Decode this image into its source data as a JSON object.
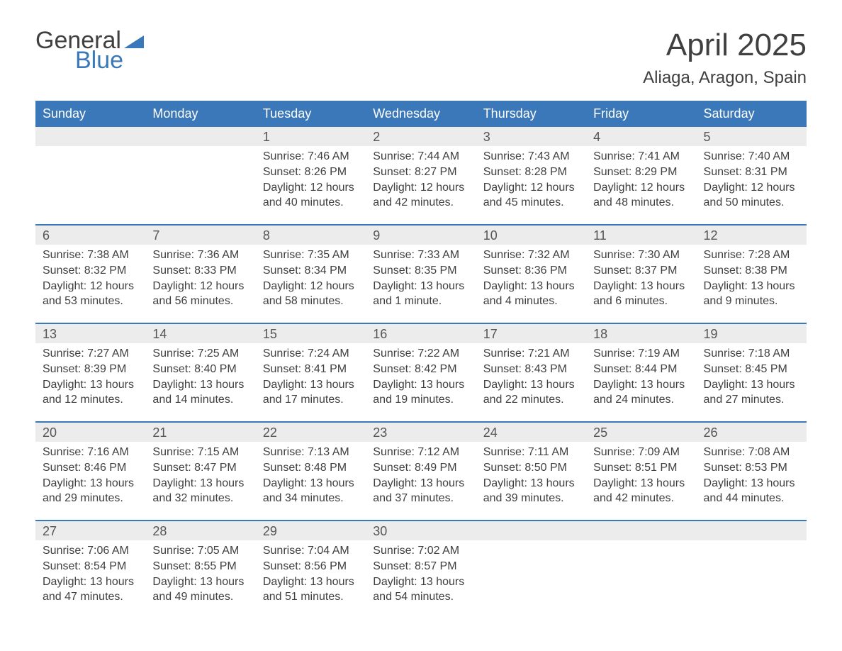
{
  "logo": {
    "line1": "General",
    "line2": "Blue"
  },
  "title": "April 2025",
  "location": "Aliaga, Aragon, Spain",
  "colors": {
    "brand_blue": "#3a78b9",
    "header_text": "#404040",
    "body_text": "#404040",
    "daynum_bg": "#ececec",
    "white": "#ffffff"
  },
  "weekdays": [
    "Sunday",
    "Monday",
    "Tuesday",
    "Wednesday",
    "Thursday",
    "Friday",
    "Saturday"
  ],
  "weeks": [
    [
      {
        "n": "",
        "sunrise": "",
        "sunset": "",
        "daylight": ""
      },
      {
        "n": "",
        "sunrise": "",
        "sunset": "",
        "daylight": ""
      },
      {
        "n": "1",
        "sunrise": "Sunrise: 7:46 AM",
        "sunset": "Sunset: 8:26 PM",
        "daylight": "Daylight: 12 hours and 40 minutes."
      },
      {
        "n": "2",
        "sunrise": "Sunrise: 7:44 AM",
        "sunset": "Sunset: 8:27 PM",
        "daylight": "Daylight: 12 hours and 42 minutes."
      },
      {
        "n": "3",
        "sunrise": "Sunrise: 7:43 AM",
        "sunset": "Sunset: 8:28 PM",
        "daylight": "Daylight: 12 hours and 45 minutes."
      },
      {
        "n": "4",
        "sunrise": "Sunrise: 7:41 AM",
        "sunset": "Sunset: 8:29 PM",
        "daylight": "Daylight: 12 hours and 48 minutes."
      },
      {
        "n": "5",
        "sunrise": "Sunrise: 7:40 AM",
        "sunset": "Sunset: 8:31 PM",
        "daylight": "Daylight: 12 hours and 50 minutes."
      }
    ],
    [
      {
        "n": "6",
        "sunrise": "Sunrise: 7:38 AM",
        "sunset": "Sunset: 8:32 PM",
        "daylight": "Daylight: 12 hours and 53 minutes."
      },
      {
        "n": "7",
        "sunrise": "Sunrise: 7:36 AM",
        "sunset": "Sunset: 8:33 PM",
        "daylight": "Daylight: 12 hours and 56 minutes."
      },
      {
        "n": "8",
        "sunrise": "Sunrise: 7:35 AM",
        "sunset": "Sunset: 8:34 PM",
        "daylight": "Daylight: 12 hours and 58 minutes."
      },
      {
        "n": "9",
        "sunrise": "Sunrise: 7:33 AM",
        "sunset": "Sunset: 8:35 PM",
        "daylight": "Daylight: 13 hours and 1 minute."
      },
      {
        "n": "10",
        "sunrise": "Sunrise: 7:32 AM",
        "sunset": "Sunset: 8:36 PM",
        "daylight": "Daylight: 13 hours and 4 minutes."
      },
      {
        "n": "11",
        "sunrise": "Sunrise: 7:30 AM",
        "sunset": "Sunset: 8:37 PM",
        "daylight": "Daylight: 13 hours and 6 minutes."
      },
      {
        "n": "12",
        "sunrise": "Sunrise: 7:28 AM",
        "sunset": "Sunset: 8:38 PM",
        "daylight": "Daylight: 13 hours and 9 minutes."
      }
    ],
    [
      {
        "n": "13",
        "sunrise": "Sunrise: 7:27 AM",
        "sunset": "Sunset: 8:39 PM",
        "daylight": "Daylight: 13 hours and 12 minutes."
      },
      {
        "n": "14",
        "sunrise": "Sunrise: 7:25 AM",
        "sunset": "Sunset: 8:40 PM",
        "daylight": "Daylight: 13 hours and 14 minutes."
      },
      {
        "n": "15",
        "sunrise": "Sunrise: 7:24 AM",
        "sunset": "Sunset: 8:41 PM",
        "daylight": "Daylight: 13 hours and 17 minutes."
      },
      {
        "n": "16",
        "sunrise": "Sunrise: 7:22 AM",
        "sunset": "Sunset: 8:42 PM",
        "daylight": "Daylight: 13 hours and 19 minutes."
      },
      {
        "n": "17",
        "sunrise": "Sunrise: 7:21 AM",
        "sunset": "Sunset: 8:43 PM",
        "daylight": "Daylight: 13 hours and 22 minutes."
      },
      {
        "n": "18",
        "sunrise": "Sunrise: 7:19 AM",
        "sunset": "Sunset: 8:44 PM",
        "daylight": "Daylight: 13 hours and 24 minutes."
      },
      {
        "n": "19",
        "sunrise": "Sunrise: 7:18 AM",
        "sunset": "Sunset: 8:45 PM",
        "daylight": "Daylight: 13 hours and 27 minutes."
      }
    ],
    [
      {
        "n": "20",
        "sunrise": "Sunrise: 7:16 AM",
        "sunset": "Sunset: 8:46 PM",
        "daylight": "Daylight: 13 hours and 29 minutes."
      },
      {
        "n": "21",
        "sunrise": "Sunrise: 7:15 AM",
        "sunset": "Sunset: 8:47 PM",
        "daylight": "Daylight: 13 hours and 32 minutes."
      },
      {
        "n": "22",
        "sunrise": "Sunrise: 7:13 AM",
        "sunset": "Sunset: 8:48 PM",
        "daylight": "Daylight: 13 hours and 34 minutes."
      },
      {
        "n": "23",
        "sunrise": "Sunrise: 7:12 AM",
        "sunset": "Sunset: 8:49 PM",
        "daylight": "Daylight: 13 hours and 37 minutes."
      },
      {
        "n": "24",
        "sunrise": "Sunrise: 7:11 AM",
        "sunset": "Sunset: 8:50 PM",
        "daylight": "Daylight: 13 hours and 39 minutes."
      },
      {
        "n": "25",
        "sunrise": "Sunrise: 7:09 AM",
        "sunset": "Sunset: 8:51 PM",
        "daylight": "Daylight: 13 hours and 42 minutes."
      },
      {
        "n": "26",
        "sunrise": "Sunrise: 7:08 AM",
        "sunset": "Sunset: 8:53 PM",
        "daylight": "Daylight: 13 hours and 44 minutes."
      }
    ],
    [
      {
        "n": "27",
        "sunrise": "Sunrise: 7:06 AM",
        "sunset": "Sunset: 8:54 PM",
        "daylight": "Daylight: 13 hours and 47 minutes."
      },
      {
        "n": "28",
        "sunrise": "Sunrise: 7:05 AM",
        "sunset": "Sunset: 8:55 PM",
        "daylight": "Daylight: 13 hours and 49 minutes."
      },
      {
        "n": "29",
        "sunrise": "Sunrise: 7:04 AM",
        "sunset": "Sunset: 8:56 PM",
        "daylight": "Daylight: 13 hours and 51 minutes."
      },
      {
        "n": "30",
        "sunrise": "Sunrise: 7:02 AM",
        "sunset": "Sunset: 8:57 PM",
        "daylight": "Daylight: 13 hours and 54 minutes."
      },
      {
        "n": "",
        "sunrise": "",
        "sunset": "",
        "daylight": ""
      },
      {
        "n": "",
        "sunrise": "",
        "sunset": "",
        "daylight": ""
      },
      {
        "n": "",
        "sunrise": "",
        "sunset": "",
        "daylight": ""
      }
    ]
  ]
}
